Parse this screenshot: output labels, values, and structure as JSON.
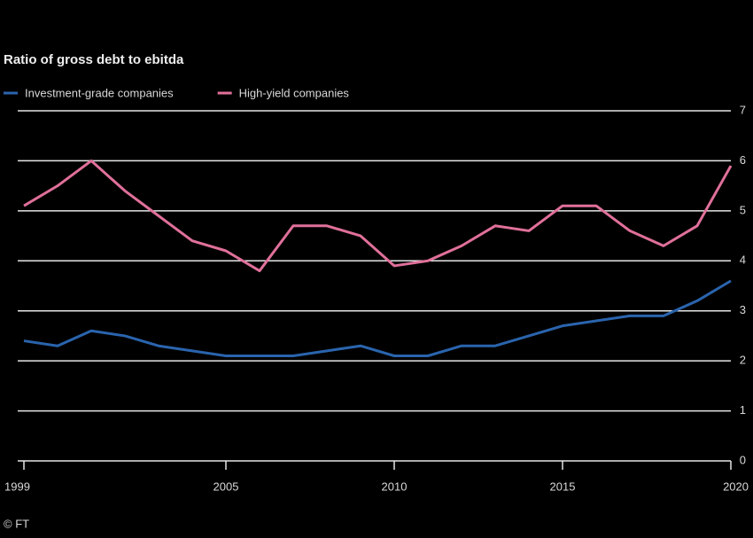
{
  "chart_data": {
    "type": "line",
    "title": "Ratio of gross debt to ebitda",
    "source": "© FT",
    "x": [
      1999,
      2000,
      2001,
      2002,
      2003,
      2004,
      2005,
      2006,
      2007,
      2008,
      2009,
      2010,
      2011,
      2012,
      2013,
      2014,
      2015,
      2016,
      2017,
      2018,
      2019,
      2020
    ],
    "series": [
      {
        "name": "Investment-grade companies",
        "color": "#2a64ad",
        "values": [
          2.4,
          2.3,
          2.6,
          2.5,
          2.3,
          2.2,
          2.1,
          2.1,
          2.1,
          2.2,
          2.3,
          2.1,
          2.1,
          2.3,
          2.3,
          2.5,
          2.7,
          2.8,
          2.9,
          2.9,
          3.2,
          3.6
        ]
      },
      {
        "name": "High-yield companies",
        "color": "#e0709a",
        "values": [
          5.1,
          5.5,
          6.0,
          5.4,
          4.9,
          4.4,
          4.2,
          3.8,
          4.7,
          4.7,
          4.5,
          3.9,
          4.0,
          4.3,
          4.7,
          4.6,
          5.1,
          5.1,
          4.6,
          4.3,
          4.7,
          5.9
        ]
      }
    ],
    "xlim": [
      1999,
      2020
    ],
    "xticks": [
      1999,
      2005,
      2010,
      2015,
      2020
    ],
    "ylim": [
      0,
      7
    ],
    "yticks": [
      0,
      1,
      2,
      3,
      4,
      5,
      6,
      7
    ],
    "grid": true
  }
}
